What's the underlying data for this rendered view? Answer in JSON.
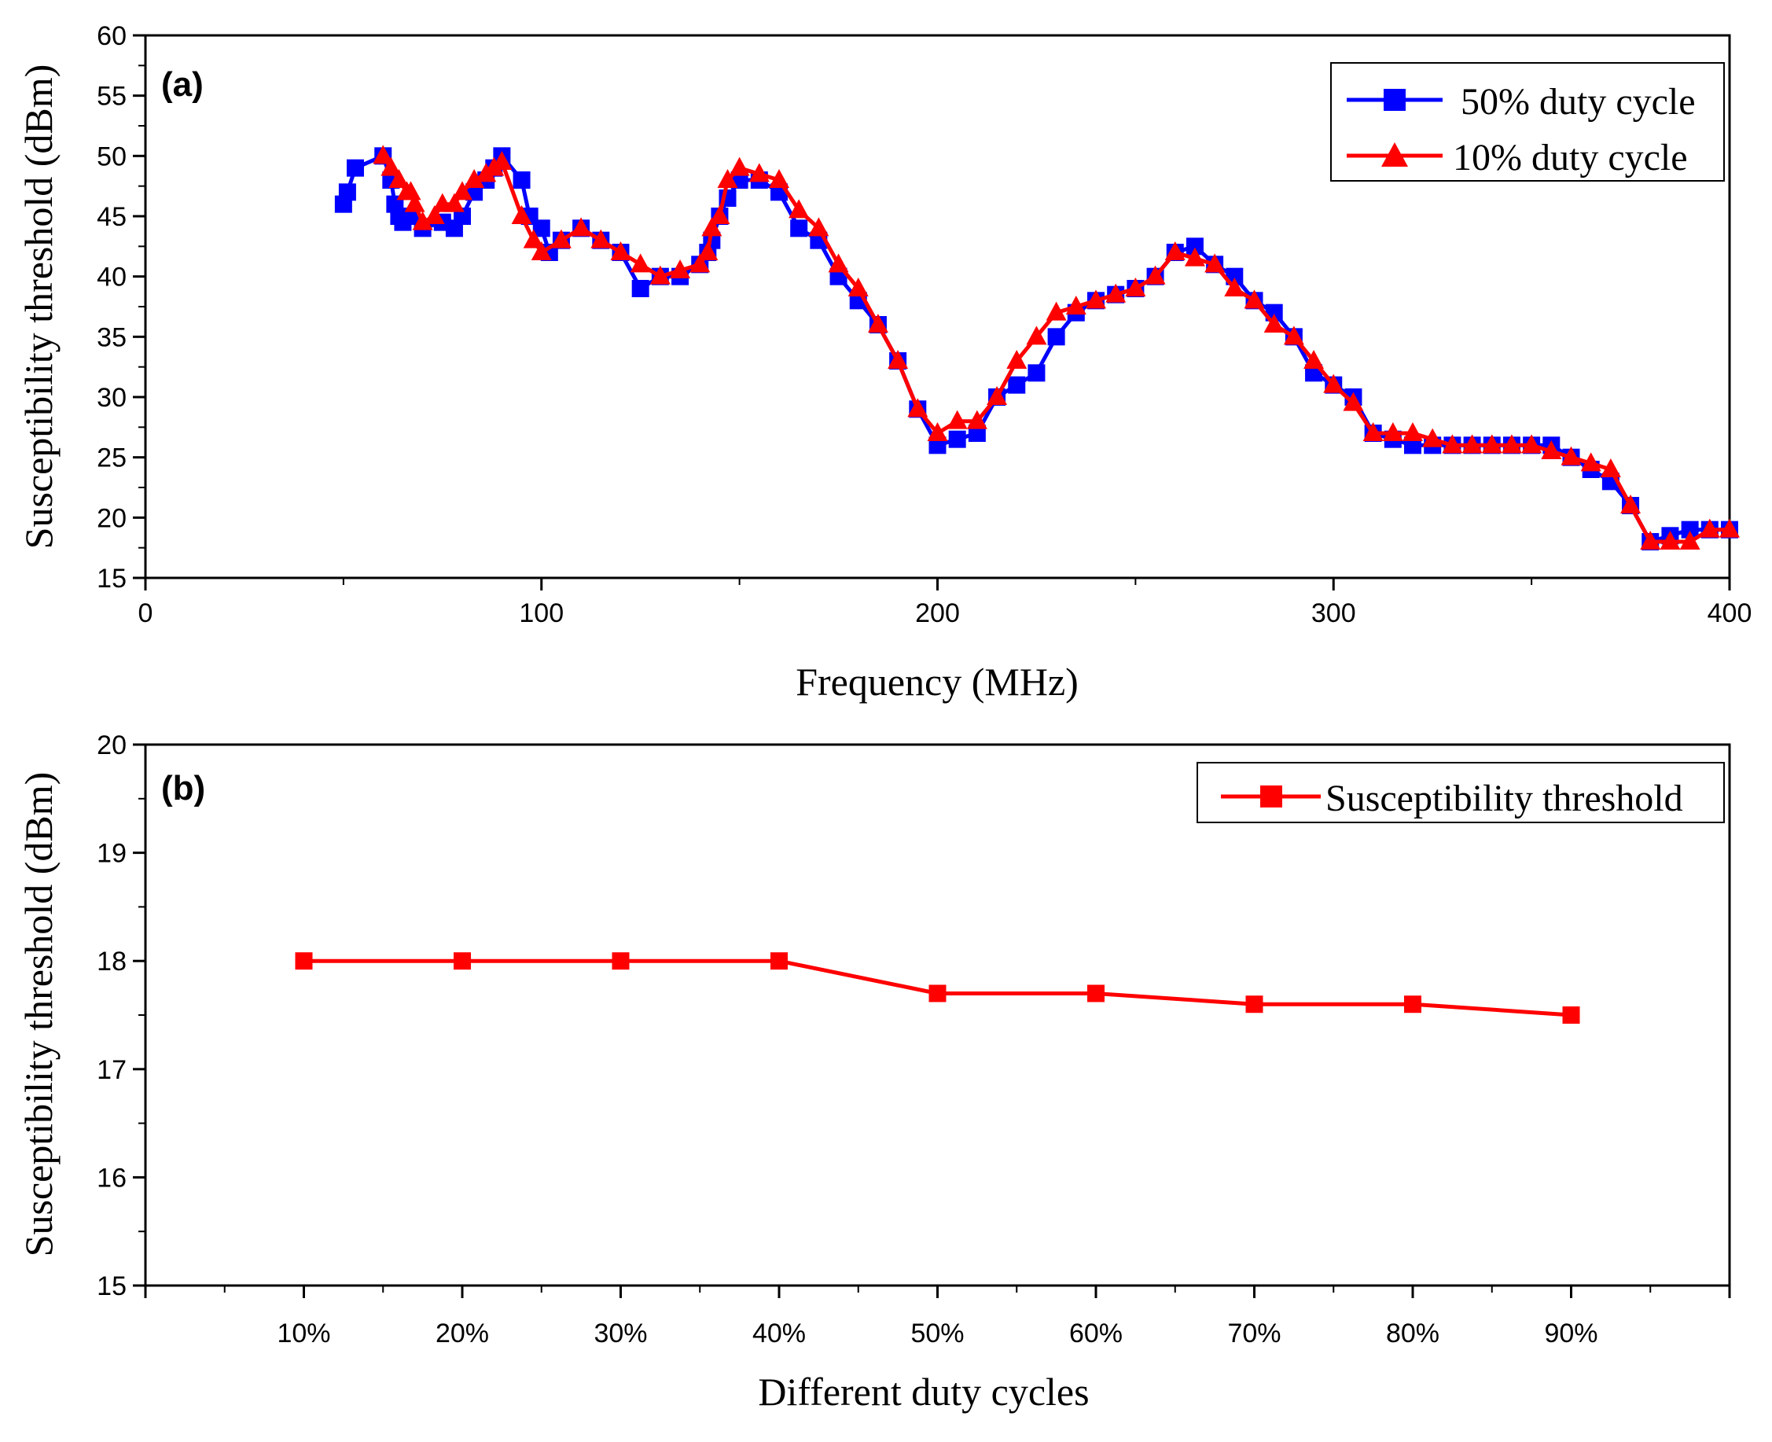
{
  "chart_data": [
    {
      "type": "line",
      "panel_label": "(a)",
      "xlabel": "Frequency (MHz)",
      "ylabel": "Susceptibility threshold (dBm)",
      "xlim": [
        0,
        400
      ],
      "ylim": [
        15,
        60
      ],
      "xticks": [
        0,
        100,
        200,
        300,
        400
      ],
      "yticks": [
        15,
        20,
        25,
        30,
        35,
        40,
        45,
        50,
        55,
        60
      ],
      "grid": false,
      "legend_position": "top-right",
      "series": [
        {
          "name": "50% duty cycle",
          "color": "#0000ff",
          "marker": "square",
          "points": [
            [
              50,
              46
            ],
            [
              51,
              47
            ],
            [
              53,
              49
            ],
            [
              60,
              50
            ],
            [
              62,
              48
            ],
            [
              63,
              46
            ],
            [
              64,
              45
            ],
            [
              65,
              44.5
            ],
            [
              67,
              45
            ],
            [
              70,
              44
            ],
            [
              75,
              44.5
            ],
            [
              78,
              44
            ],
            [
              80,
              45
            ],
            [
              83,
              47
            ],
            [
              86,
              48
            ],
            [
              88,
              49
            ],
            [
              90,
              50
            ],
            [
              95,
              48
            ],
            [
              97,
              45
            ],
            [
              100,
              44
            ],
            [
              102,
              42
            ],
            [
              105,
              43
            ],
            [
              110,
              44
            ],
            [
              115,
              43
            ],
            [
              120,
              42
            ],
            [
              125,
              39
            ],
            [
              130,
              40
            ],
            [
              135,
              40
            ],
            [
              140,
              41
            ],
            [
              142,
              42
            ],
            [
              143,
              43
            ],
            [
              145,
              45
            ],
            [
              147,
              46.5
            ],
            [
              150,
              48
            ],
            [
              155,
              48
            ],
            [
              160,
              47
            ],
            [
              165,
              44
            ],
            [
              170,
              43
            ],
            [
              175,
              40
            ],
            [
              180,
              38
            ],
            [
              185,
              36
            ],
            [
              190,
              33
            ],
            [
              195,
              29
            ],
            [
              200,
              26
            ],
            [
              205,
              26.5
            ],
            [
              210,
              27
            ],
            [
              215,
              30
            ],
            [
              220,
              31
            ],
            [
              225,
              32
            ],
            [
              230,
              35
            ],
            [
              235,
              37
            ],
            [
              240,
              38
            ],
            [
              245,
              38.5
            ],
            [
              250,
              39
            ],
            [
              255,
              40
            ],
            [
              260,
              42
            ],
            [
              265,
              42.5
            ],
            [
              270,
              41
            ],
            [
              275,
              40
            ],
            [
              280,
              38
            ],
            [
              285,
              37
            ],
            [
              290,
              35
            ],
            [
              295,
              32
            ],
            [
              300,
              31
            ],
            [
              305,
              30
            ],
            [
              310,
              27
            ],
            [
              315,
              26.5
            ],
            [
              320,
              26
            ],
            [
              325,
              26
            ],
            [
              330,
              26
            ],
            [
              335,
              26
            ],
            [
              340,
              26
            ],
            [
              345,
              26
            ],
            [
              350,
              26
            ],
            [
              355,
              26
            ],
            [
              360,
              25
            ],
            [
              365,
              24
            ],
            [
              370,
              23
            ],
            [
              375,
              21
            ],
            [
              380,
              18
            ],
            [
              385,
              18.5
            ],
            [
              390,
              19
            ],
            [
              395,
              19
            ],
            [
              400,
              19
            ]
          ]
        },
        {
          "name": "10% duty cycle",
          "color": "#ff0000",
          "marker": "triangle",
          "points": [
            [
              60,
              50
            ],
            [
              62,
              49
            ],
            [
              64,
              48
            ],
            [
              66,
              47
            ],
            [
              67,
              47
            ],
            [
              68,
              46
            ],
            [
              70,
              44.5
            ],
            [
              73,
              45
            ],
            [
              75,
              46
            ],
            [
              78,
              46
            ],
            [
              80,
              47
            ],
            [
              83,
              48
            ],
            [
              86,
              48.5
            ],
            [
              88,
              49
            ],
            [
              90,
              49.5
            ],
            [
              95,
              45
            ],
            [
              98,
              43
            ],
            [
              100,
              42
            ],
            [
              105,
              43
            ],
            [
              110,
              44
            ],
            [
              115,
              43
            ],
            [
              120,
              42
            ],
            [
              125,
              41
            ],
            [
              130,
              40
            ],
            [
              135,
              40.5
            ],
            [
              140,
              41
            ],
            [
              142,
              42
            ],
            [
              143,
              44
            ],
            [
              145,
              45
            ],
            [
              147,
              48
            ],
            [
              150,
              49
            ],
            [
              155,
              48.5
            ],
            [
              160,
              48
            ],
            [
              165,
              45.5
            ],
            [
              170,
              44
            ],
            [
              175,
              41
            ],
            [
              180,
              39
            ],
            [
              185,
              36
            ],
            [
              190,
              33
            ],
            [
              195,
              29
            ],
            [
              200,
              27
            ],
            [
              205,
              28
            ],
            [
              210,
              28
            ],
            [
              215,
              30
            ],
            [
              220,
              33
            ],
            [
              225,
              35
            ],
            [
              230,
              37
            ],
            [
              235,
              37.5
            ],
            [
              240,
              38
            ],
            [
              245,
              38.5
            ],
            [
              250,
              39
            ],
            [
              255,
              40
            ],
            [
              260,
              42
            ],
            [
              265,
              41.5
            ],
            [
              270,
              41
            ],
            [
              275,
              39
            ],
            [
              280,
              38
            ],
            [
              285,
              36
            ],
            [
              290,
              35
            ],
            [
              295,
              33
            ],
            [
              300,
              31
            ],
            [
              305,
              29.5
            ],
            [
              310,
              27
            ],
            [
              315,
              27
            ],
            [
              320,
              27
            ],
            [
              325,
              26.5
            ],
            [
              330,
              26
            ],
            [
              335,
              26
            ],
            [
              340,
              26
            ],
            [
              345,
              26
            ],
            [
              350,
              26
            ],
            [
              355,
              25.5
            ],
            [
              360,
              25
            ],
            [
              365,
              24.5
            ],
            [
              370,
              24
            ],
            [
              375,
              21
            ],
            [
              380,
              18
            ],
            [
              385,
              18
            ],
            [
              390,
              18
            ],
            [
              395,
              19
            ],
            [
              400,
              19
            ]
          ]
        }
      ]
    },
    {
      "type": "line",
      "panel_label": "(b)",
      "xlabel": "Different duty cycles",
      "ylabel": "Susceptibility threshold (dBm)",
      "ylim": [
        15,
        20
      ],
      "yticks": [
        15,
        16,
        17,
        18,
        19,
        20
      ],
      "categories": [
        "10%",
        "20%",
        "30%",
        "40%",
        "50%",
        "60%",
        "70%",
        "80%",
        "90%"
      ],
      "grid": false,
      "legend_position": "top-right",
      "series": [
        {
          "name": "Susceptibility threshold",
          "color": "#ff0000",
          "marker": "square",
          "values": [
            18,
            18,
            18,
            18,
            17.7,
            17.7,
            17.6,
            17.6,
            17.5
          ]
        }
      ]
    }
  ]
}
